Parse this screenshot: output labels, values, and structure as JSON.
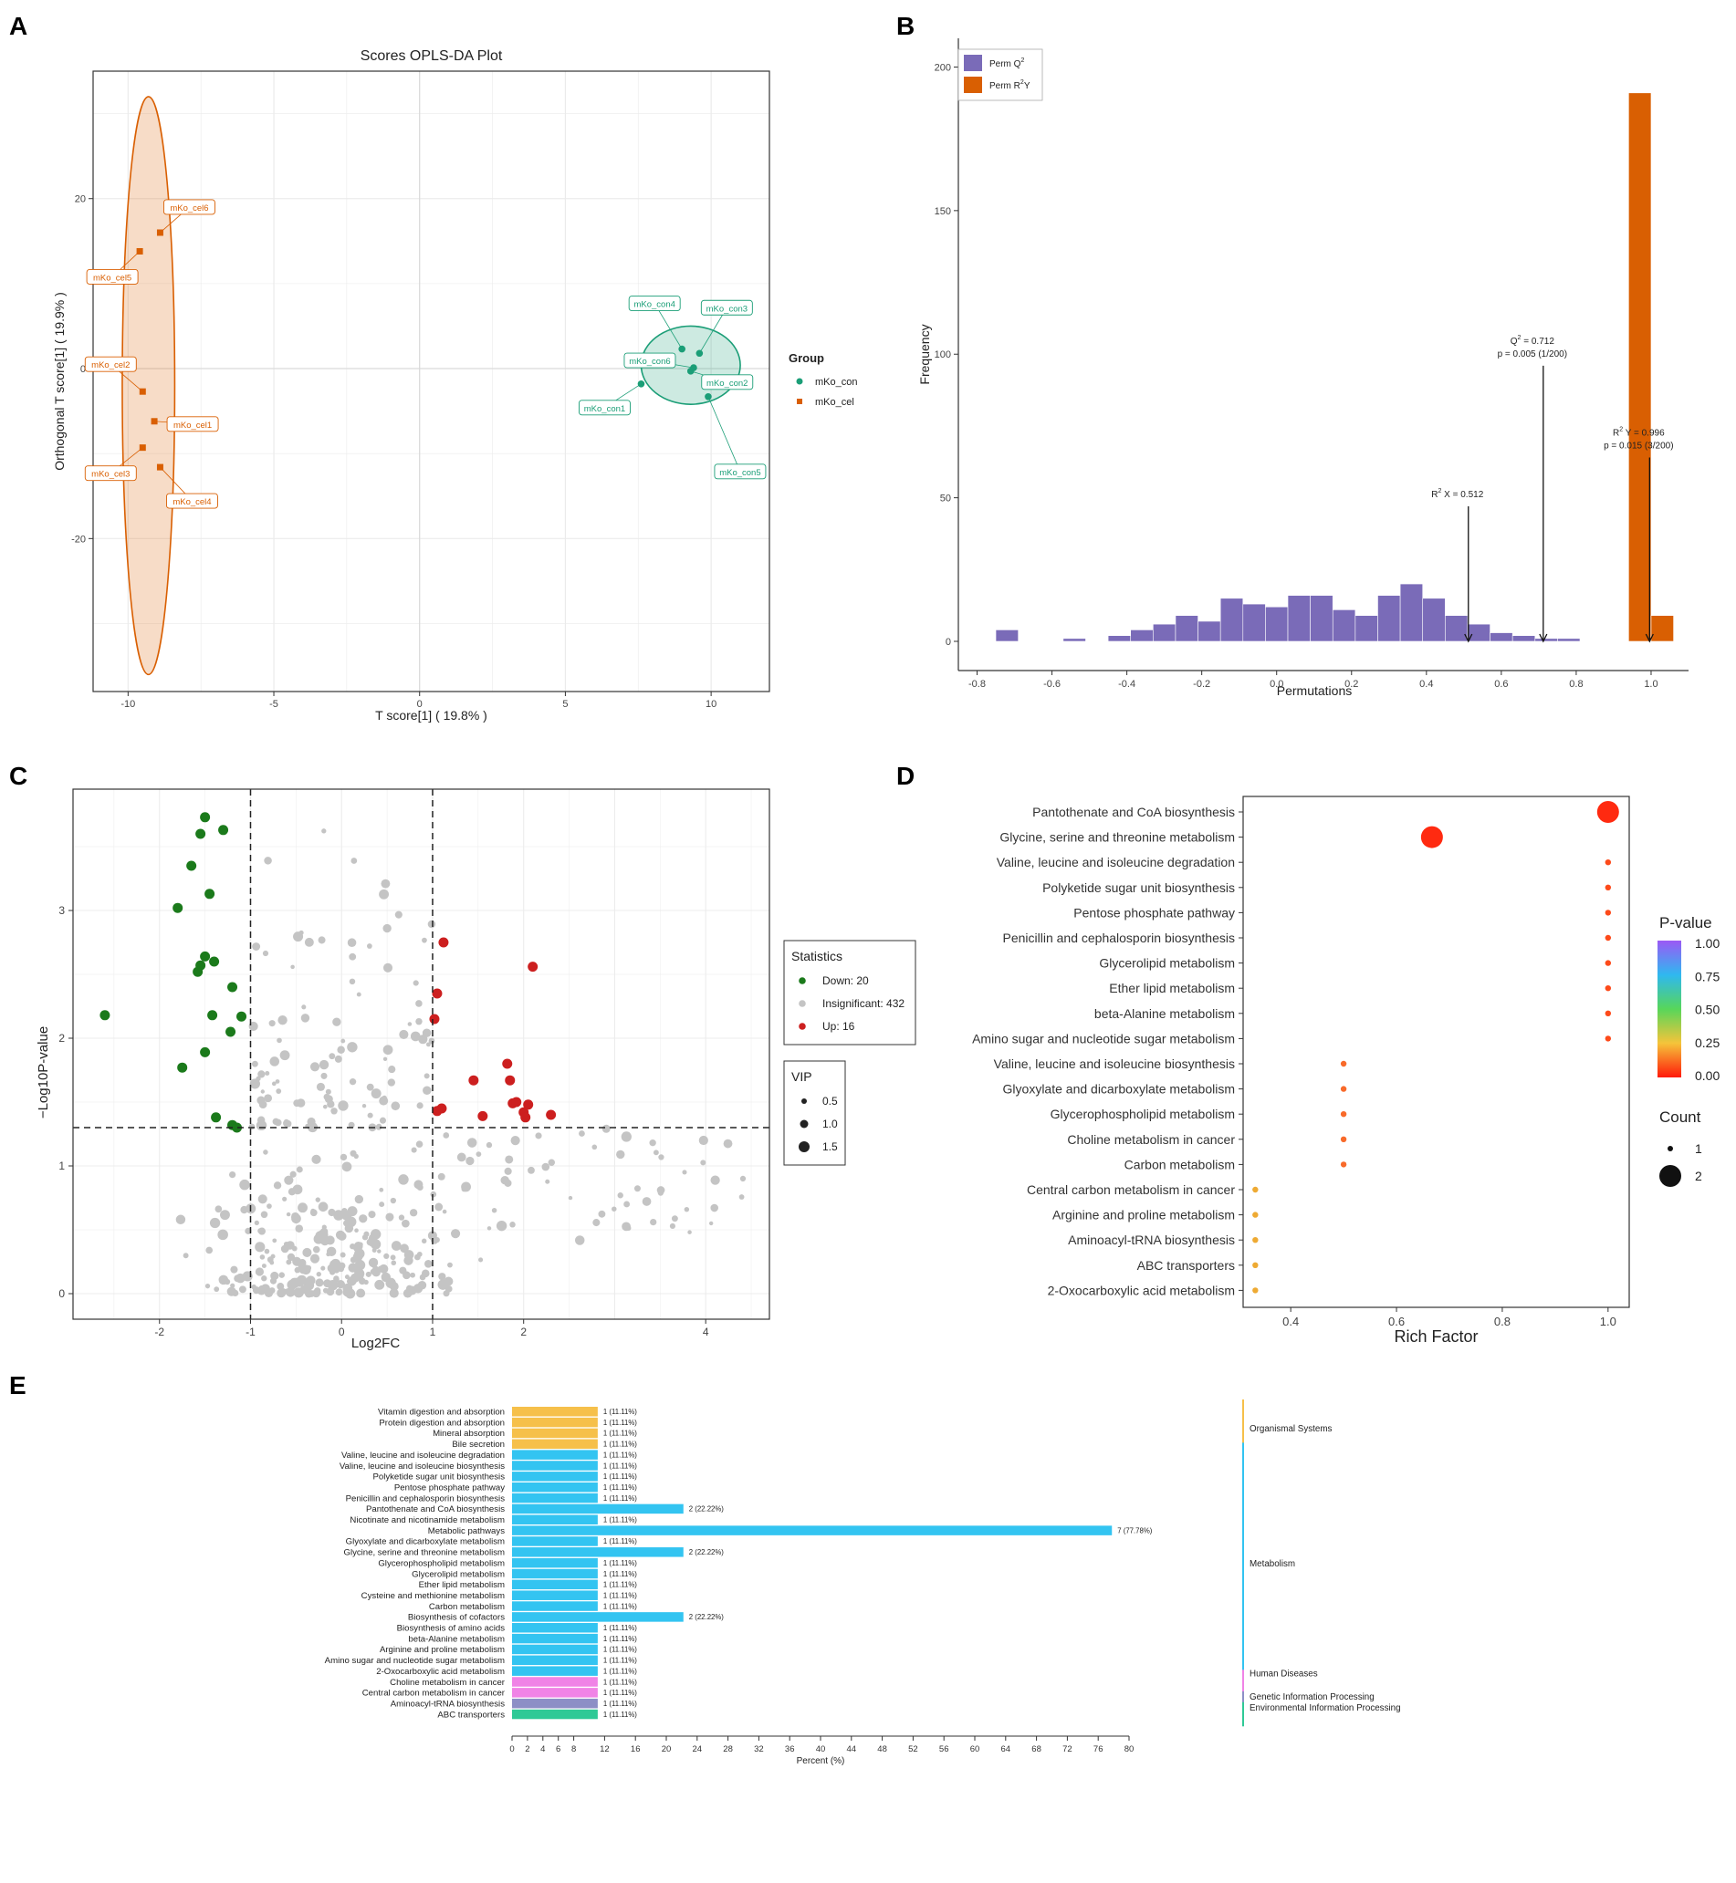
{
  "panel_letters": [
    "A",
    "B",
    "C",
    "D",
    "E"
  ],
  "chart_data": [
    {
      "panel": "A",
      "type": "scatter",
      "title": "Scores OPLS-DA Plot",
      "xlabel": "T score[1] ( 19.8% )",
      "ylabel": "Orthogonal T score[1] ( 19.9% )",
      "xlim": [
        -11.2,
        12
      ],
      "ylim": [
        -38,
        35
      ],
      "xticks": [
        -10,
        -5,
        0,
        5,
        10
      ],
      "yticks": [
        -20,
        0,
        20
      ],
      "grid": true,
      "legend_title": "Group",
      "colors": {
        "mKo_con": "#1b9e77",
        "mKo_cel": "#d95f02"
      },
      "groups": [
        {
          "name": "mKo_con",
          "ellipse": {
            "cx": 9.3,
            "cy": 0.4,
            "rx": 1.7,
            "ry": 4.6
          },
          "points": [
            {
              "label": "mKo_con1",
              "x": 7.6,
              "y": -1.8
            },
            {
              "label": "mKo_con2",
              "x": 9.3,
              "y": -0.3
            },
            {
              "label": "mKo_con3",
              "x": 9.6,
              "y": 1.8
            },
            {
              "label": "mKo_con4",
              "x": 9.0,
              "y": 2.3
            },
            {
              "label": "mKo_con5",
              "x": 9.9,
              "y": -3.3
            },
            {
              "label": "mKo_con6",
              "x": 9.4,
              "y": 0.1
            }
          ]
        },
        {
          "name": "mKo_cel",
          "ellipse": {
            "cx": -9.3,
            "cy": -2.0,
            "rx": 0.9,
            "ry": 34
          },
          "points": [
            {
              "label": "mKo_cel1",
              "x": -9.1,
              "y": -6.2
            },
            {
              "label": "mKo_cel2",
              "x": -9.5,
              "y": -2.7
            },
            {
              "label": "mKo_cel3",
              "x": -9.5,
              "y": -9.3
            },
            {
              "label": "mKo_cel4",
              "x": -8.9,
              "y": -11.6
            },
            {
              "label": "mKo_cel5",
              "x": -9.6,
              "y": 13.8
            },
            {
              "label": "mKo_cel6",
              "x": -8.9,
              "y": 16.0
            }
          ]
        }
      ]
    },
    {
      "panel": "B",
      "type": "bar",
      "xlabel": "Permutations",
      "ylabel": "Frequency",
      "xlim": [
        -0.85,
        1.1
      ],
      "ylim": [
        0,
        200
      ],
      "xticks": [
        -0.8,
        -0.6,
        -0.4,
        -0.2,
        0.0,
        0.2,
        0.4,
        0.6,
        0.8,
        1.0
      ],
      "yticks": [
        0,
        50,
        100,
        150,
        200
      ],
      "bin_width": 0.06,
      "series": [
        {
          "name": "Perm Q2",
          "legend_main": "Perm Q",
          "legend_sup": "2",
          "color": "#7a6bb8",
          "bins": [
            {
              "x": -0.72,
              "count": 4
            },
            {
              "x": -0.54,
              "count": 1
            },
            {
              "x": -0.42,
              "count": 2
            },
            {
              "x": -0.36,
              "count": 4
            },
            {
              "x": -0.3,
              "count": 6
            },
            {
              "x": -0.24,
              "count": 9
            },
            {
              "x": -0.18,
              "count": 7
            },
            {
              "x": -0.12,
              "count": 15
            },
            {
              "x": -0.06,
              "count": 13
            },
            {
              "x": 0.0,
              "count": 12
            },
            {
              "x": 0.06,
              "count": 16
            },
            {
              "x": 0.12,
              "count": 16
            },
            {
              "x": 0.18,
              "count": 11
            },
            {
              "x": 0.24,
              "count": 9
            },
            {
              "x": 0.3,
              "count": 16
            },
            {
              "x": 0.36,
              "count": 20
            },
            {
              "x": 0.42,
              "count": 15
            },
            {
              "x": 0.48,
              "count": 9
            },
            {
              "x": 0.54,
              "count": 6
            },
            {
              "x": 0.6,
              "count": 3
            },
            {
              "x": 0.66,
              "count": 2
            },
            {
              "x": 0.72,
              "count": 1
            },
            {
              "x": 0.78,
              "count": 1
            }
          ]
        },
        {
          "name": "Perm R2Y",
          "legend_main": "Perm R",
          "legend_sup": "2",
          "legend_tail": "Y",
          "color": "#d95f02",
          "bins": [
            {
              "x": 0.97,
              "count": 191
            },
            {
              "x": 1.03,
              "count": 9
            }
          ]
        }
      ],
      "annotations": [
        {
          "x": 0.512,
          "y_top": 47,
          "lines": [
            {
              "pre": "R",
              "sup": "2",
              "post": " X = 0.512"
            }
          ]
        },
        {
          "x": 0.712,
          "y_top": 96,
          "lines": [
            {
              "pre": "Q",
              "sup": "2",
              "post": " = 0.712"
            },
            {
              "pre": "p = 0.005 (1/200)",
              "sup": "",
              "post": ""
            }
          ]
        },
        {
          "x": 0.996,
          "y_top": 64,
          "lines": [
            {
              "pre": "R",
              "sup": "2",
              "post": " Y = 0.996"
            },
            {
              "pre": "p = 0.015 (3/200)",
              "sup": "",
              "post": ""
            }
          ]
        }
      ]
    },
    {
      "panel": "C",
      "type": "scatter",
      "xlabel": "Log2FC",
      "ylabel": "−Log10P-value",
      "xlim": [
        -2.95,
        4.7
      ],
      "ylim": [
        -0.2,
        3.95
      ],
      "xticks": [
        -2,
        -1,
        0,
        1,
        2,
        4
      ],
      "yticks": [
        0,
        1,
        2,
        3
      ],
      "thresholds": {
        "fc": [
          -1,
          1
        ],
        "p": 1.3
      },
      "legend_title": "Statistics",
      "legend": [
        {
          "label": "Down: 20",
          "color": "#1b7a1b"
        },
        {
          "label": "Insignificant: 432",
          "color": "#c4c4c4"
        },
        {
          "label": "Up: 16",
          "color": "#cc1f1f"
        }
      ],
      "size_title": "VIP",
      "size_legend": [
        {
          "label": "0.5",
          "r": 3
        },
        {
          "label": "1.0",
          "r": 4.5
        },
        {
          "label": "1.5",
          "r": 6
        }
      ],
      "down": [
        [
          -2.6,
          2.18
        ],
        [
          -1.5,
          3.73
        ],
        [
          -1.55,
          3.6
        ],
        [
          -1.3,
          3.63
        ],
        [
          -1.65,
          3.35
        ],
        [
          -1.8,
          3.02
        ],
        [
          -1.45,
          3.13
        ],
        [
          -1.5,
          2.64
        ],
        [
          -1.55,
          2.57
        ],
        [
          -1.58,
          2.52
        ],
        [
          -1.4,
          2.6
        ],
        [
          -1.2,
          2.4
        ],
        [
          -1.42,
          2.18
        ],
        [
          -1.1,
          2.17
        ],
        [
          -1.22,
          2.05
        ],
        [
          -1.5,
          1.89
        ],
        [
          -1.75,
          1.77
        ],
        [
          -1.38,
          1.38
        ],
        [
          -1.2,
          1.32
        ],
        [
          -1.15,
          1.3
        ]
      ],
      "up": [
        [
          1.12,
          2.75
        ],
        [
          2.1,
          2.56
        ],
        [
          1.05,
          2.35
        ],
        [
          1.02,
          2.15
        ],
        [
          1.82,
          1.8
        ],
        [
          1.45,
          1.67
        ],
        [
          1.85,
          1.67
        ],
        [
          1.1,
          1.45
        ],
        [
          1.05,
          1.43
        ],
        [
          1.55,
          1.39
        ],
        [
          1.88,
          1.49
        ],
        [
          1.92,
          1.5
        ],
        [
          2.05,
          1.48
        ],
        [
          2.0,
          1.42
        ],
        [
          2.02,
          1.38
        ],
        [
          2.3,
          1.4
        ]
      ]
    },
    {
      "panel": "D",
      "type": "scatter",
      "xlabel": "Rich Factor",
      "xlim": [
        0.31,
        1.04
      ],
      "xticks": [
        0.4,
        0.6,
        0.8,
        1.0
      ],
      "colorbar_title": "P-value",
      "colorbar_ticks": [
        "1.00",
        "0.75",
        "0.50",
        "0.25",
        "0.00"
      ],
      "size_title": "Count",
      "size_legend": [
        {
          "label": "1",
          "r": 3
        },
        {
          "label": "2",
          "r": 12
        }
      ],
      "pathways": [
        {
          "name": "Pantothenate and CoA biosynthesis",
          "rich": 1.0,
          "count": 2,
          "color": "#ff2a10"
        },
        {
          "name": "Glycine, serine and threonine metabolism",
          "rich": 0.667,
          "count": 2,
          "color": "#ff2a10"
        },
        {
          "name": "Valine, leucine and isoleucine degradation",
          "rich": 1.0,
          "count": 1,
          "color": "#fd4a1a"
        },
        {
          "name": "Polyketide sugar unit biosynthesis",
          "rich": 1.0,
          "count": 1,
          "color": "#fd4a1a"
        },
        {
          "name": "Pentose phosphate pathway",
          "rich": 1.0,
          "count": 1,
          "color": "#fd4a1a"
        },
        {
          "name": "Penicillin and cephalosporin biosynthesis",
          "rich": 1.0,
          "count": 1,
          "color": "#fd4a1a"
        },
        {
          "name": "Glycerolipid metabolism",
          "rich": 1.0,
          "count": 1,
          "color": "#fd4a1a"
        },
        {
          "name": "Ether lipid metabolism",
          "rich": 1.0,
          "count": 1,
          "color": "#fd4a1a"
        },
        {
          "name": "beta-Alanine metabolism",
          "rich": 1.0,
          "count": 1,
          "color": "#fd4a1a"
        },
        {
          "name": "Amino sugar and nucleotide sugar metabolism",
          "rich": 1.0,
          "count": 1,
          "color": "#fd4a1a"
        },
        {
          "name": "Valine, leucine and isoleucine biosynthesis",
          "rich": 0.5,
          "count": 1,
          "color": "#f86a2a"
        },
        {
          "name": "Glyoxylate and dicarboxylate metabolism",
          "rich": 0.5,
          "count": 1,
          "color": "#f86a2a"
        },
        {
          "name": "Glycerophospholipid metabolism",
          "rich": 0.5,
          "count": 1,
          "color": "#f86a2a"
        },
        {
          "name": "Choline metabolism in cancer",
          "rich": 0.5,
          "count": 1,
          "color": "#f86a2a"
        },
        {
          "name": "Carbon metabolism",
          "rich": 0.5,
          "count": 1,
          "color": "#f86a2a"
        },
        {
          "name": "Central carbon metabolism in cancer",
          "rich": 0.333,
          "count": 1,
          "color": "#eeaa33"
        },
        {
          "name": "Arginine and proline metabolism",
          "rich": 0.333,
          "count": 1,
          "color": "#eeaa33"
        },
        {
          "name": "Aminoacyl-tRNA biosynthesis",
          "rich": 0.333,
          "count": 1,
          "color": "#eeaa33"
        },
        {
          "name": "ABC transporters",
          "rich": 0.333,
          "count": 1,
          "color": "#eeaa33"
        },
        {
          "name": "2-Oxocarboxylic acid metabolism",
          "rich": 0.333,
          "count": 1,
          "color": "#eeaa33"
        }
      ]
    },
    {
      "panel": "E",
      "type": "bar",
      "xlabel": "Percent (%)",
      "xlim": [
        0,
        80
      ],
      "xticks": [
        0,
        2,
        4,
        6,
        8,
        12,
        16,
        20,
        24,
        28,
        32,
        36,
        40,
        44,
        48,
        52,
        56,
        60,
        64,
        68,
        72,
        76,
        80
      ],
      "category_colors": {
        "Organismal Systems": "#f6c04a",
        "Metabolism": "#33c4f1",
        "Human Diseases": "#f083e6",
        "Genetic Information Processing": "#8d8fc6",
        "Environmental Information Processing": "#2fc996"
      },
      "categories": [
        {
          "name": "Organismal Systems",
          "color": "#f6c04a"
        },
        {
          "name": "Metabolism",
          "color": "#33c4f1"
        },
        {
          "name": "Human Diseases",
          "color": "#f083e6"
        },
        {
          "name": "Genetic Information Processing",
          "color": "#8d8fc6"
        },
        {
          "name": "Environmental Information Processing",
          "color": "#2fc996"
        }
      ],
      "bars": [
        {
          "name": "Vitamin digestion and absorption",
          "value": 11.11,
          "label": "1 (11.11%)",
          "category": "Organismal Systems"
        },
        {
          "name": "Protein digestion and absorption",
          "value": 11.11,
          "label": "1 (11.11%)",
          "category": "Organismal Systems"
        },
        {
          "name": "Mineral absorption",
          "value": 11.11,
          "label": "1 (11.11%)",
          "category": "Organismal Systems"
        },
        {
          "name": "Bile secretion",
          "value": 11.11,
          "label": "1 (11.11%)",
          "category": "Organismal Systems"
        },
        {
          "name": "Valine, leucine and isoleucine degradation",
          "value": 11.11,
          "label": "1 (11.11%)",
          "category": "Metabolism"
        },
        {
          "name": "Valine, leucine and isoleucine biosynthesis",
          "value": 11.11,
          "label": "1 (11.11%)",
          "category": "Metabolism"
        },
        {
          "name": "Polyketide sugar unit biosynthesis",
          "value": 11.11,
          "label": "1 (11.11%)",
          "category": "Metabolism"
        },
        {
          "name": "Pentose phosphate pathway",
          "value": 11.11,
          "label": "1 (11.11%)",
          "category": "Metabolism"
        },
        {
          "name": "Penicillin and cephalosporin biosynthesis",
          "value": 11.11,
          "label": "1 (11.11%)",
          "category": "Metabolism"
        },
        {
          "name": "Pantothenate and CoA biosynthesis",
          "value": 22.22,
          "label": "2 (22.22%)",
          "category": "Metabolism"
        },
        {
          "name": "Nicotinate and nicotinamide metabolism",
          "value": 11.11,
          "label": "1 (11.11%)",
          "category": "Metabolism"
        },
        {
          "name": "Metabolic pathways",
          "value": 77.78,
          "label": "7 (77.78%)",
          "category": "Metabolism"
        },
        {
          "name": "Glyoxylate and dicarboxylate metabolism",
          "value": 11.11,
          "label": "1 (11.11%)",
          "category": "Metabolism"
        },
        {
          "name": "Glycine, serine and threonine metabolism",
          "value": 22.22,
          "label": "2 (22.22%)",
          "category": "Metabolism"
        },
        {
          "name": "Glycerophospholipid metabolism",
          "value": 11.11,
          "label": "1 (11.11%)",
          "category": "Metabolism"
        },
        {
          "name": "Glycerolipid metabolism",
          "value": 11.11,
          "label": "1 (11.11%)",
          "category": "Metabolism"
        },
        {
          "name": "Ether lipid metabolism",
          "value": 11.11,
          "label": "1 (11.11%)",
          "category": "Metabolism"
        },
        {
          "name": "Cysteine and methionine metabolism",
          "value": 11.11,
          "label": "1 (11.11%)",
          "category": "Metabolism"
        },
        {
          "name": "Carbon metabolism",
          "value": 11.11,
          "label": "1 (11.11%)",
          "category": "Metabolism"
        },
        {
          "name": "Biosynthesis of cofactors",
          "value": 22.22,
          "label": "2 (22.22%)",
          "category": "Metabolism"
        },
        {
          "name": "Biosynthesis of amino acids",
          "value": 11.11,
          "label": "1 (11.11%)",
          "category": "Metabolism"
        },
        {
          "name": "beta-Alanine metabolism",
          "value": 11.11,
          "label": "1 (11.11%)",
          "category": "Metabolism"
        },
        {
          "name": "Arginine and proline metabolism",
          "value": 11.11,
          "label": "1 (11.11%)",
          "category": "Metabolism"
        },
        {
          "name": "Amino sugar and nucleotide sugar metabolism",
          "value": 11.11,
          "label": "1 (11.11%)",
          "category": "Metabolism"
        },
        {
          "name": "2-Oxocarboxylic acid metabolism",
          "value": 11.11,
          "label": "1 (11.11%)",
          "category": "Metabolism"
        },
        {
          "name": "Choline metabolism in cancer",
          "value": 11.11,
          "label": "1 (11.11%)",
          "category": "Human Diseases"
        },
        {
          "name": "Central carbon metabolism in cancer",
          "value": 11.11,
          "label": "1 (11.11%)",
          "category": "Human Diseases"
        },
        {
          "name": "Aminoacyl-tRNA biosynthesis",
          "value": 11.11,
          "label": "1 (11.11%)",
          "category": "Genetic Information Processing"
        },
        {
          "name": "ABC transporters",
          "value": 11.11,
          "label": "1 (11.11%)",
          "category": "Environmental Information Processing"
        }
      ]
    }
  ]
}
